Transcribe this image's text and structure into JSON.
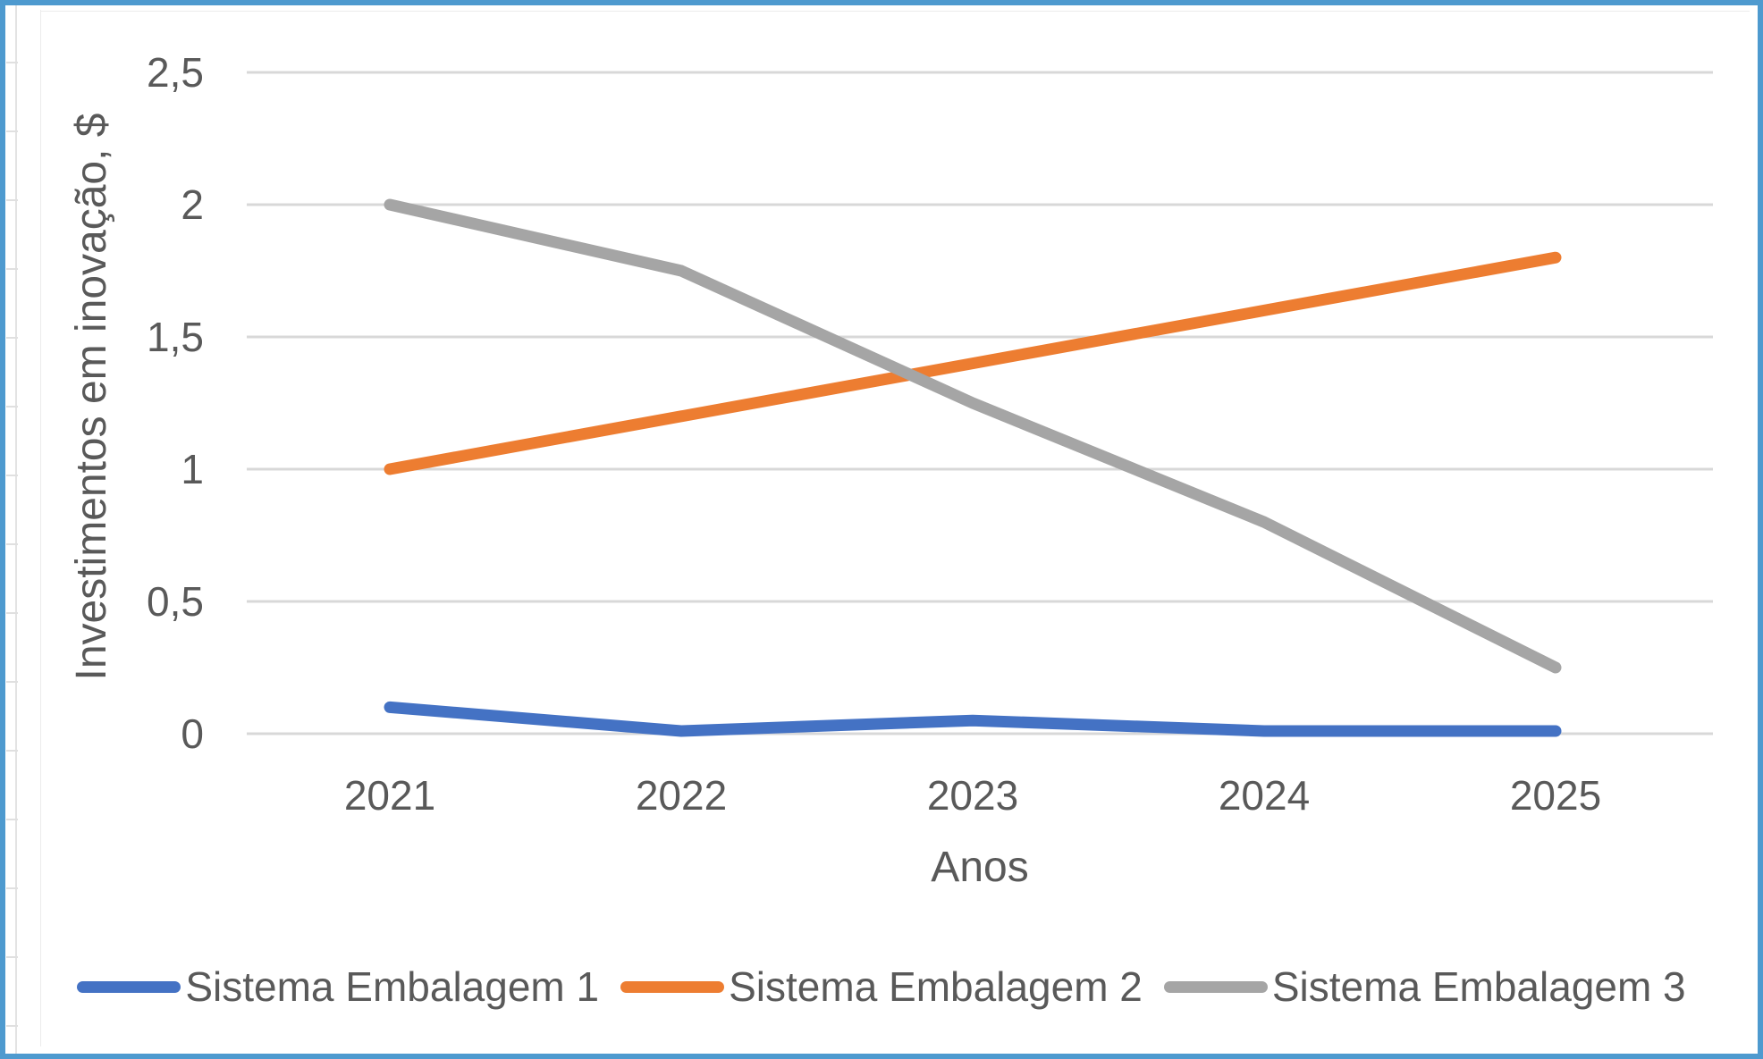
{
  "colors": {
    "frame_border": "#4E9ACF",
    "text": "#595959",
    "gridline": "#D8D8D8",
    "series_blue": "#4472C4",
    "series_orange": "#ED7D31",
    "series_gray": "#A5A5A5"
  },
  "chart_data": {
    "type": "line",
    "title": "",
    "xlabel": "Anos",
    "ylabel": "Investimentos em inovação, $",
    "categories": [
      "2021",
      "2022",
      "2023",
      "2024",
      "2025"
    ],
    "series": [
      {
        "name": "Sistema Embalagem 1",
        "color": "#4472C4",
        "values": [
          0.1,
          0.01,
          0.05,
          0.01,
          0.01
        ]
      },
      {
        "name": "Sistema Embalagem 2",
        "color": "#ED7D31",
        "values": [
          1.0,
          1.2,
          1.4,
          1.6,
          1.8
        ]
      },
      {
        "name": "Sistema Embalagem 3",
        "color": "#A5A5A5",
        "values": [
          2.0,
          1.75,
          1.25,
          0.8,
          0.25
        ]
      }
    ],
    "ylim": [
      0,
      2.5
    ],
    "ytick_step": 0.5,
    "ytick_labels": [
      "0",
      "0,5",
      "1",
      "1,5",
      "2",
      "2,5"
    ],
    "decimal_separator": ",",
    "grid": true,
    "legend_position": "bottom"
  }
}
